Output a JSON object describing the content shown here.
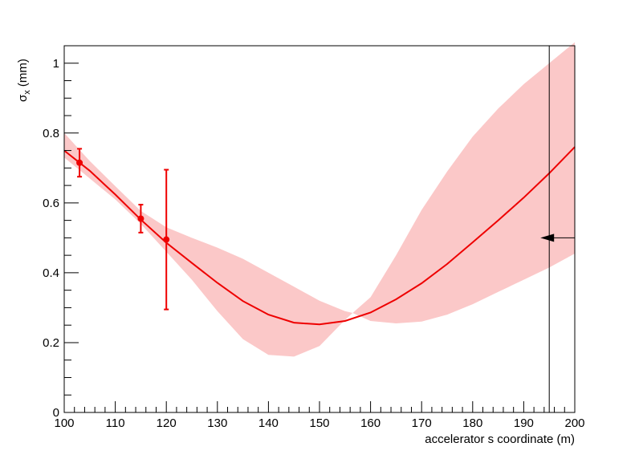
{
  "chart_data": {
    "type": "line",
    "title": "",
    "xlabel": "accelerator s coordinate (m)",
    "ylabel": {
      "main": "σ",
      "sub": "x",
      "unit": " (mm)"
    },
    "xlim": [
      100,
      200
    ],
    "ylim": [
      0,
      1.05
    ],
    "x_ticks": [
      100,
      110,
      120,
      130,
      140,
      150,
      160,
      170,
      180,
      190,
      200
    ],
    "y_ticks": [
      0,
      0.2,
      0.4,
      0.6,
      0.8,
      1
    ],
    "y_tick_labels": [
      "0",
      "0.2",
      "0.4",
      "0.6",
      "0.8",
      "1"
    ],
    "grid": false,
    "colors": {
      "fit_line": "#ee0000",
      "band": "#fbc8c8",
      "points": "#ee0000",
      "marker_line": "#000000"
    },
    "fit_curve": {
      "name": "",
      "x": [
        100,
        105,
        110,
        115,
        120,
        125,
        130,
        135,
        140,
        145,
        150,
        155,
        160,
        165,
        170,
        175,
        180,
        185,
        190,
        195,
        200
      ],
      "y": [
        0.75,
        0.692,
        0.624,
        0.552,
        0.486,
        0.428,
        0.371,
        0.319,
        0.28,
        0.257,
        0.252,
        0.262,
        0.286,
        0.324,
        0.37,
        0.425,
        0.487,
        0.55,
        0.615,
        0.685,
        0.76
      ]
    },
    "confidence_band": {
      "x": [
        100,
        105,
        110,
        115,
        120,
        125,
        130,
        135,
        140,
        145,
        150,
        155,
        156.5,
        160,
        165,
        170,
        175,
        180,
        185,
        190,
        195,
        200
      ],
      "upper": [
        0.8,
        0.72,
        0.648,
        0.577,
        0.53,
        0.5,
        0.472,
        0.44,
        0.4,
        0.36,
        0.32,
        0.29,
        0.285,
        0.33,
        0.45,
        0.58,
        0.69,
        0.79,
        0.87,
        0.94,
        1.0,
        1.06
      ],
      "lower": [
        0.73,
        0.67,
        0.61,
        0.54,
        0.46,
        0.38,
        0.29,
        0.21,
        0.165,
        0.16,
        0.19,
        0.265,
        0.285,
        0.262,
        0.255,
        0.26,
        0.28,
        0.31,
        0.345,
        0.38,
        0.415,
        0.455
      ]
    },
    "measurements": [
      {
        "x": 103,
        "y": 0.715,
        "err_low": 0.04,
        "err_high": 0.04
      },
      {
        "x": 115,
        "y": 0.555,
        "err_low": 0.04,
        "err_high": 0.04
      },
      {
        "x": 120,
        "y": 0.495,
        "err_low": 0.2,
        "err_high": 0.2
      }
    ],
    "vertical_marker_x": 195,
    "arrow_y": 0.5
  }
}
